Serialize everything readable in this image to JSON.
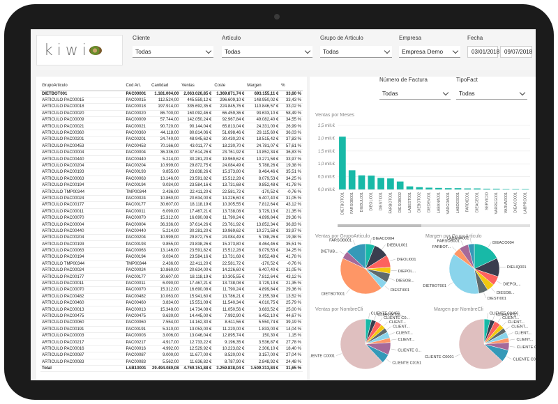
{
  "logo": "kiwi",
  "filters": {
    "cliente": {
      "label": "Cliente",
      "value": "Todas"
    },
    "articulo": {
      "label": "Artículo",
      "value": "Todas"
    },
    "grupo": {
      "label": "Grupo de Articulo",
      "value": "Todas"
    },
    "empresa": {
      "label": "Empresa",
      "value": "Empresa Demo"
    },
    "fecha": {
      "label": "Fecha",
      "from": "03/01/2018",
      "to": "09/07/2018"
    },
    "factura": {
      "label": "Número de Factura",
      "value": "Todas"
    },
    "tipofact": {
      "label": "TipoFact",
      "value": "Todas"
    }
  },
  "table": {
    "headers": [
      "GrupoArticulo",
      "Cod Art.",
      "Cantidad",
      "Ventas",
      "Coste",
      "Margen",
      "%"
    ],
    "rows": [
      [
        "DIETBOT001",
        "PAC00001",
        "1.181.004,00",
        "2.063.026,85 €",
        "1.369.871,74 €",
        "693.155,11 €",
        "33,60 %"
      ],
      [
        "ARTICULO PAC00015",
        "PAC00015",
        "112.524,00",
        "445.559,12 €",
        "296.609,10 €",
        "148.950,02 €",
        "33,43 %"
      ],
      [
        "ARTICULO PAC00018",
        "PAC00018",
        "197.914,00",
        "335.692,35 €",
        "224.845,76 €",
        "110.846,57 €",
        "33,02 %"
      ],
      [
        "ARTICULO PAC00020",
        "PAC00020",
        "86.700,00",
        "160.092,46 €",
        "66.459,36 €",
        "93.633,10 €",
        "58,49 %"
      ],
      [
        "ARTICULO PAC00009",
        "PAC00009",
        "57.744,00",
        "142.050,24 €",
        "92.967,84 €",
        "49.082,40 €",
        "34,55 %"
      ],
      [
        "ARTICULO PAC00021",
        "PAC00021",
        "90.720,00",
        "90.144,04 €",
        "65.813,04 €",
        "24.331,00 €",
        "26,99 %"
      ],
      [
        "ARTICULO PAC00360",
        "PAC00360",
        "44.118,00",
        "80.814,06 €",
        "51.698,46 €",
        "29.115,60 €",
        "36,03 %"
      ],
      [
        "ARTICULO PAC00201",
        "PAC00201",
        "24.740,00",
        "48.945,62 €",
        "30.430,20 €",
        "18.515,42 €",
        "37,83 %"
      ],
      [
        "ARTICULO PAC00453",
        "PAC00453",
        "70.166,00",
        "43.011,77 €",
        "18.230,70 €",
        "24.781,07 €",
        "57,61 %"
      ],
      [
        "ARTICULO PAC00004",
        "PAC00004",
        "36.336,00",
        "37.614,26 €",
        "23.761,92 €",
        "13.852,34 €",
        "36,83 %"
      ],
      [
        "ARTICULO PAC00440",
        "PAC00440",
        "5.214,00",
        "30.281,20 €",
        "19.969,62 €",
        "10.271,58 €",
        "33,97 %"
      ],
      [
        "ARTICULO PAC00204",
        "PAC00204",
        "10.999,00",
        "29.872,75 €",
        "24.084,49 €",
        "5.788,26 €",
        "19,38 %"
      ],
      [
        "ARTICULO PAC00193",
        "PAC00193",
        "9.855,00",
        "23.838,26 €",
        "15.373,80 €",
        "8.464,46 €",
        "35,51 %"
      ],
      [
        "ARTICULO PAC00063",
        "PAC00063",
        "13.146,00",
        "23.591,82 €",
        "15.512,28 €",
        "8.079,53 €",
        "34,25 %"
      ],
      [
        "ARTICULO PAC00194",
        "PAC00194",
        "9.034,00",
        "23.584,16 €",
        "13.731,68 €",
        "9.852,48 €",
        "41,78 %"
      ],
      [
        "ARTICULO TMP00344",
        "TMP00344",
        "2.436,00",
        "22.411,20 €",
        "22.581,72 €",
        "-170,52 €",
        "-0,76 %"
      ],
      [
        "ARTICULO PAC00024",
        "PAC00024",
        "10.860,00",
        "20.634,00 €",
        "14.226,60 €",
        "6.407,40 €",
        "31,05 %"
      ],
      [
        "ARTICULO PAC00177",
        "PAC00177",
        "30.607,00",
        "18.118,19 €",
        "10.305,55 €",
        "7.812,64 €",
        "43,12 %"
      ],
      [
        "ARTICULO PAC00011",
        "PAC00011",
        "6.090,00",
        "17.467,21 €",
        "13.738,08 €",
        "3.729,13 €",
        "21,35 %"
      ],
      [
        "ARTICULO PAC00070",
        "PAC00070",
        "15.312,00",
        "16.690,08 €",
        "11.790,24 €",
        "4.899,84 €",
        "29,36 %"
      ],
      [
        "ARTICULO PAC00004",
        "PAC00004",
        "36.336,00",
        "37.614,26 €",
        "23.761,92 €",
        "13.852,34 €",
        "36,83 %"
      ],
      [
        "ARTICULO PAC00440",
        "PAC00440",
        "5.214,00",
        "30.281,20 €",
        "19.969,62 €",
        "10.271,58 €",
        "33,97 %"
      ],
      [
        "ARTICULO PAC00204",
        "PAC00204",
        "10.999,00",
        "29.872,75 €",
        "24.084,49 €",
        "5.788,26 €",
        "19,38 %"
      ],
      [
        "ARTICULO PAC00193",
        "PAC00193",
        "9.855,00",
        "23.838,26 €",
        "15.373,80 €",
        "8.464,46 €",
        "35,51 %"
      ],
      [
        "ARTICULO PAC00063",
        "PAC00063",
        "13.146,00",
        "23.591,82 €",
        "15.512,28 €",
        "8.079,53 €",
        "34,25 %"
      ],
      [
        "ARTICULO PAC00194",
        "PAC00194",
        "9.034,00",
        "23.584,16 €",
        "13.731,68 €",
        "9.852,48 €",
        "41,78 %"
      ],
      [
        "ARTICULO TMP00344",
        "TMP00344",
        "2.436,00",
        "22.411,20 €",
        "22.581,72 €",
        "-170,52 €",
        "-0,76 %"
      ],
      [
        "ARTICULO PAC00024",
        "PAC00024",
        "10.860,00",
        "20.634,00 €",
        "14.226,60 €",
        "6.407,40 €",
        "31,05 %"
      ],
      [
        "ARTICULO PAC00177",
        "PAC00177",
        "30.607,00",
        "18.118,19 €",
        "10.305,55 €",
        "7.812,64 €",
        "43,12 %"
      ],
      [
        "ARTICULO PAC00011",
        "PAC00011",
        "6.090,00",
        "17.467,21 €",
        "13.738,08 €",
        "3.729,13 €",
        "21,35 %"
      ],
      [
        "ARTICULO PAC00070",
        "PAC00070",
        "15.312,00",
        "16.690,08 €",
        "11.790,24 €",
        "4.899,84 €",
        "29,36 %"
      ],
      [
        "ARTICULO PAC00482",
        "PAC00482",
        "10.063,00",
        "15.941,60 €",
        "13.786,21 €",
        "2.155,39 €",
        "13,52 %"
      ],
      [
        "ARTICULO PAC00460",
        "PAC00460",
        "3.834,00",
        "15.551,09 €",
        "11.540,34 €",
        "4.010,75 €",
        "25,79 %"
      ],
      [
        "ARTICULO PAC00013",
        "PAC00013",
        "15.348,00",
        "14.734,08 €",
        "11.050,56 €",
        "3.683,52 €",
        "25,00 %"
      ],
      [
        "ARTICULO PAC00475",
        "PAC00475",
        "9.630,00",
        "14.445,00 €",
        "7.992,90 €",
        "6.452,10 €",
        "44,67 %"
      ],
      [
        "ARTICULO PAC00060",
        "PAC00060",
        "7.554,00",
        "14.162,30 €",
        "8.611,56 €",
        "5.550,74 €",
        "39,19 %"
      ],
      [
        "ARTICULO PAC00191",
        "PAC00191",
        "5.310,00",
        "13.053,00 €",
        "11.220,00 €",
        "1.833,00 €",
        "14,04 %"
      ],
      [
        "ARTICULO PAC00003",
        "PAC00003",
        "3.006,00",
        "13.046,04 €",
        "12.895,74 €",
        "150,30 €",
        "1,15 %"
      ],
      [
        "ARTICULO PAC00217",
        "PAC00217",
        "4.917,00",
        "12.733,22 €",
        "9.196,35 €",
        "3.536,87 €",
        "27,78 %"
      ],
      [
        "ARTICULO PAC00016",
        "PAC00016",
        "4.992,00",
        "12.529,92 €",
        "10.223,82 €",
        "2.306,10 €",
        "18,40 %"
      ],
      [
        "ARTICULO PAC00087",
        "PAC00087",
        "9.000,00",
        "11.677,00 €",
        "8.520,00 €",
        "3.157,00 €",
        "27,04 %"
      ],
      [
        "ARTICULO PAC00083",
        "PAC00083",
        "5.562,00",
        "11.636,82 €",
        "8.787,90 €",
        "2.848,92 €",
        "24,48 %"
      ]
    ],
    "total": [
      "Total",
      "LAB10001",
      "29.494.080,08",
      "4.769.151,88 €",
      "3.259.838,04 €",
      "1.509.313,84 €",
      "31,65 %"
    ]
  },
  "bar_chart": {
    "title": "Ventas por Meses",
    "type": "bar",
    "yticks": [
      "2,5 mill.€",
      "2,0 mill.€",
      "1,5 mill.€",
      "1,0 mill.€",
      "0,5 mill.€",
      "0,0 mill.€"
    ],
    "ylim": [
      0,
      2.5
    ],
    "categories": [
      "DIETBOT001",
      "FARSOB001",
      "DIEBUL001",
      "DIEOLI001",
      "DIESTI001",
      "FARBOT001",
      "DIESOB002",
      "LABEST001",
      "DIEBOT002",
      "DIEDEV001",
      "LABANA001",
      "VARGRA001",
      "LABDES001",
      "FARDIE001",
      "DIEACE001",
      "SERVICIO",
      "VARREG001",
      "VARVAR001",
      "DIEACO001",
      "LABPRO001"
    ],
    "values": [
      2.06,
      0.75,
      0.55,
      0.54,
      0.45,
      0.43,
      0.31,
      0.12,
      0.09,
      0.07,
      0.06,
      0.05,
      0.05,
      0.04,
      0.04,
      0.03,
      0.03,
      0.02,
      0.02,
      0.02
    ],
    "color": "#18b9a7"
  },
  "pies": [
    {
      "title": "Ventas por GrupoArticulo",
      "labels": [
        "DIEACO004",
        "DIEBUL001",
        "DIEOLI001",
        "DIEPOL...",
        "DIESOB...",
        "DIESTI001",
        "DIETBOT001",
        "DIETUB...",
        "FARSOB001"
      ],
      "values": [
        6,
        10,
        8,
        4,
        6,
        5,
        43,
        5,
        13
      ]
    },
    {
      "title": "Margen por GrupoArticulo",
      "labels": [
        "DIEACO004",
        "DIELIQ001",
        "DIEPOL...",
        "DIESOB...",
        "DIESTI001",
        "DIETBOT001",
        "FARBOT...",
        "FARSOB001",
        "LABANA001"
      ],
      "values": [
        18,
        12,
        6,
        5,
        6,
        38,
        5,
        6,
        4
      ]
    },
    {
      "title": "Ventas por NombreCli",
      "labels": [
        "CLIENTE C0456",
        "CLIENTE C0...",
        "CLIENTE C0...",
        "CLIENT...",
        "CLIENT...",
        "CLIENT...",
        "CLIENT...",
        "CLIENTE C...",
        "CLIENTE C0151",
        "CLIENTE C0001"
      ],
      "values": [
        4,
        3,
        4,
        3,
        3,
        4,
        3,
        8,
        6,
        62
      ]
    },
    {
      "title": "Margen por NombreCli",
      "labels": [
        "CLIENTE C0456",
        "CLIENTE C...",
        "CLIENT...",
        "CLIENT...",
        "CLIENT...",
        "CLIENT...",
        "CLIENT...",
        "CLIENTE C0...",
        "CLIENTE C0151",
        "CLIENTE C0001"
      ],
      "values": [
        4,
        3,
        4,
        3,
        3,
        4,
        3,
        5,
        8,
        63
      ]
    }
  ],
  "pie_colors": [
    "#18b9a7",
    "#3a3d4e",
    "#fd625e",
    "#f2c80f",
    "#5f6b6d",
    "#8ad4eb",
    "#fe9666",
    "#a66999",
    "#3599b8",
    "#dfbfbf"
  ]
}
